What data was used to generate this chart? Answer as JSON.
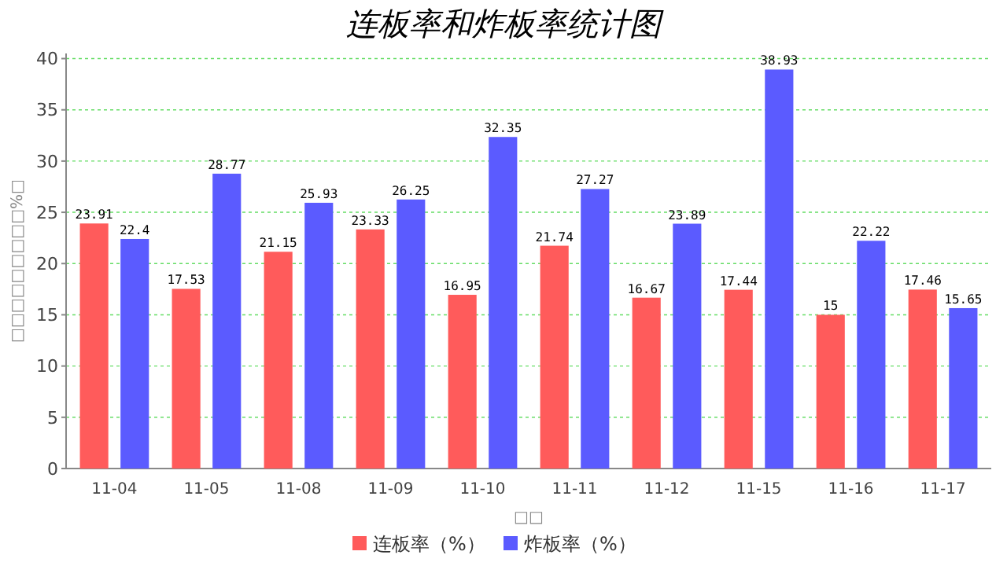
{
  "chart_data": {
    "type": "bar",
    "title": "连板率和炸板率统计图",
    "xlabel": "□□",
    "ylabel": "□□□□□□□□□%□",
    "categories": [
      "11-04",
      "11-05",
      "11-08",
      "11-09",
      "11-10",
      "11-11",
      "11-12",
      "11-15",
      "11-16",
      "11-17"
    ],
    "series": [
      {
        "name": "连板率（%）",
        "color": "#ff5b5b",
        "values": [
          23.91,
          17.53,
          21.15,
          23.33,
          16.95,
          21.74,
          16.67,
          17.44,
          15,
          17.46
        ]
      },
      {
        "name": "炸板率（%）",
        "color": "#5b5bff",
        "values": [
          22.4,
          28.77,
          25.93,
          26.25,
          32.35,
          27.27,
          23.89,
          38.93,
          22.22,
          15.65
        ]
      }
    ],
    "ylim": [
      0,
      40.5
    ],
    "yticks": [
      0,
      5,
      10,
      15,
      20,
      25,
      30,
      35,
      40
    ],
    "grid": "y",
    "legend": "bottom",
    "data_labels": true
  }
}
